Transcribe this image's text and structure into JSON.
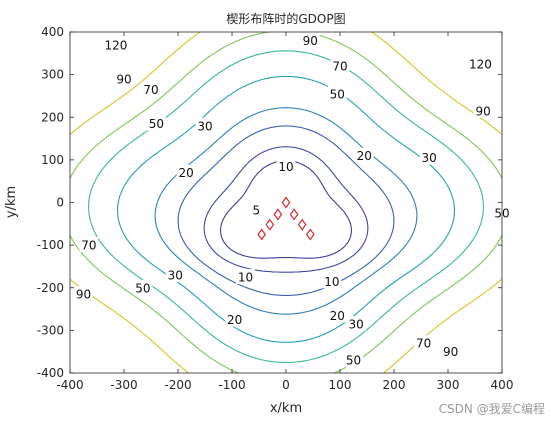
{
  "chart_data": {
    "type": "contour",
    "title": "楔形布阵时的GDOP图",
    "xlabel": "x/km",
    "ylabel": "y/km",
    "xlim": [
      -400,
      400
    ],
    "ylim": [
      -400,
      400
    ],
    "xticks": [
      -400,
      -300,
      -200,
      -100,
      0,
      100,
      200,
      300,
      400
    ],
    "yticks": [
      -400,
      -300,
      -200,
      -100,
      0,
      100,
      200,
      300,
      400
    ],
    "grid": false,
    "levels": [
      {
        "value": 5,
        "color": "#3b3f96"
      },
      {
        "value": 10,
        "color": "#4148a4"
      },
      {
        "value": 20,
        "color": "#3a5eb4"
      },
      {
        "value": 30,
        "color": "#2f7fbb"
      },
      {
        "value": 50,
        "color": "#27a0ad"
      },
      {
        "value": 70,
        "color": "#3cb890"
      },
      {
        "value": 90,
        "color": "#80c45a"
      },
      {
        "value": 120,
        "color": "#d4c52b"
      }
    ],
    "contour_labels": [
      {
        "text": "5",
        "x": -55,
        "y": -18
      },
      {
        "text": "10",
        "x": 0,
        "y": 85
      },
      {
        "text": "10",
        "x": -75,
        "y": -175
      },
      {
        "text": "10",
        "x": 85,
        "y": -185
      },
      {
        "text": "20",
        "x": -185,
        "y": 70
      },
      {
        "text": "20",
        "x": 145,
        "y": 110
      },
      {
        "text": "20",
        "x": -95,
        "y": -275
      },
      {
        "text": "20",
        "x": 95,
        "y": -265
      },
      {
        "text": "30",
        "x": -150,
        "y": 180
      },
      {
        "text": "30",
        "x": 265,
        "y": 105
      },
      {
        "text": "30",
        "x": -205,
        "y": -170
      },
      {
        "text": "30",
        "x": 130,
        "y": -285
      },
      {
        "text": "50",
        "x": -240,
        "y": 185
      },
      {
        "text": "50",
        "x": 95,
        "y": 255
      },
      {
        "text": "50",
        "x": 400,
        "y": -25
      },
      {
        "text": "50",
        "x": -265,
        "y": -200
      },
      {
        "text": "50",
        "x": 125,
        "y": -370
      },
      {
        "text": "70",
        "x": -250,
        "y": 265
      },
      {
        "text": "70",
        "x": 100,
        "y": 320
      },
      {
        "text": "70",
        "x": -365,
        "y": -100
      },
      {
        "text": "70",
        "x": 255,
        "y": -330
      },
      {
        "text": "90",
        "x": -300,
        "y": 290
      },
      {
        "text": "90",
        "x": 45,
        "y": 380
      },
      {
        "text": "90",
        "x": 365,
        "y": 215
      },
      {
        "text": "90",
        "x": -375,
        "y": -215
      },
      {
        "text": "90",
        "x": 305,
        "y": -350
      },
      {
        "text": "120",
        "x": -315,
        "y": 370
      },
      {
        "text": "120",
        "x": 360,
        "y": 325
      }
    ],
    "markers": {
      "symbol": "diamond",
      "color": "#d62728",
      "points": [
        {
          "x": -45,
          "y": -75
        },
        {
          "x": -30,
          "y": -52
        },
        {
          "x": -15,
          "y": -28
        },
        {
          "x": 0,
          "y": 0
        },
        {
          "x": 15,
          "y": -28
        },
        {
          "x": 30,
          "y": -52
        },
        {
          "x": 45,
          "y": -75
        }
      ]
    }
  },
  "watermark": {
    "text": "CSDN @我爱C编程"
  }
}
